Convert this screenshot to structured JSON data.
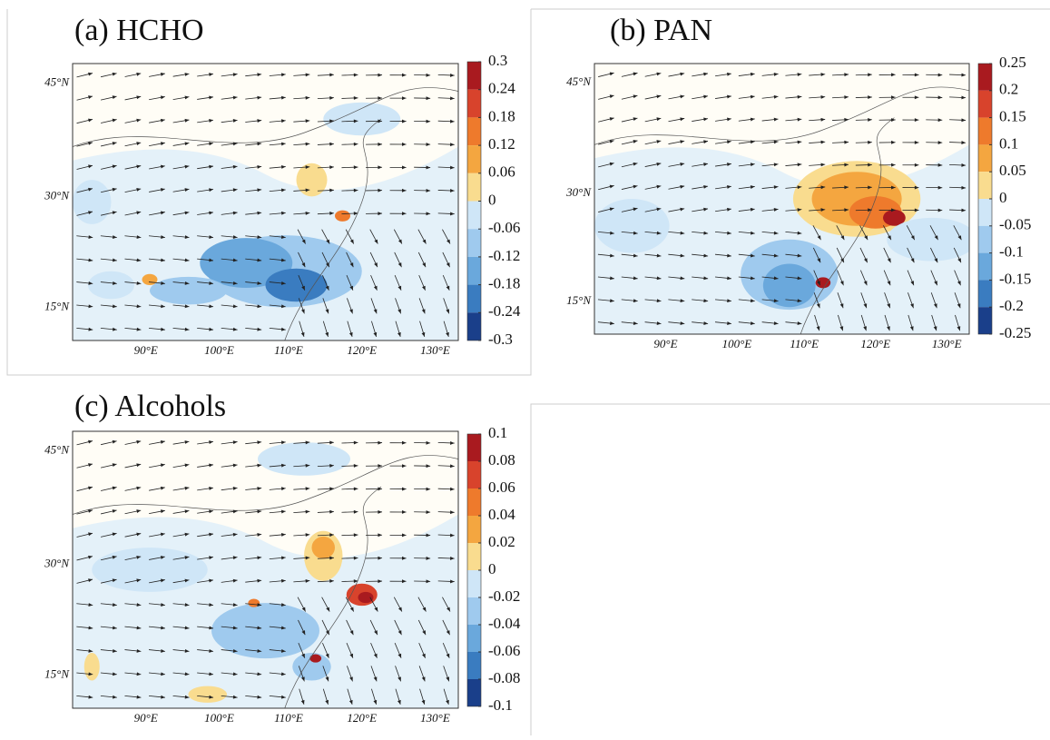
{
  "panels": [
    {
      "title": "(a) HCHO",
      "lat_labels": [
        "45°N",
        "30°N",
        "15°N"
      ],
      "lon_labels": [
        "90°E",
        "100°E",
        "110°E",
        "120°E",
        "130°E"
      ],
      "colorbar_ticks": [
        0.3,
        0.24,
        0.18,
        0.12,
        0.06,
        0,
        -0.06,
        -0.12,
        -0.18,
        -0.24,
        -0.3
      ]
    },
    {
      "title": "(b) PAN",
      "lat_labels": [
        "45°N",
        "30°N",
        "15°N"
      ],
      "lon_labels": [
        "90°E",
        "100°E",
        "110°E",
        "120°E",
        "130°E"
      ],
      "colorbar_ticks": [
        0.25,
        0.2,
        0.15,
        0.1,
        0.05,
        0,
        -0.05,
        -0.1,
        -0.15,
        -0.2,
        -0.25
      ]
    },
    {
      "title": "(c) Alcohols",
      "lat_labels": [
        "45°N",
        "30°N",
        "15°N"
      ],
      "lon_labels": [
        "90°E",
        "100°E",
        "110°E",
        "120°E",
        "130°E"
      ],
      "colorbar_ticks": [
        0.1,
        0.08,
        0.06,
        0.04,
        0.02,
        0,
        -0.02,
        -0.04,
        -0.06,
        -0.08,
        -0.1
      ]
    }
  ]
}
